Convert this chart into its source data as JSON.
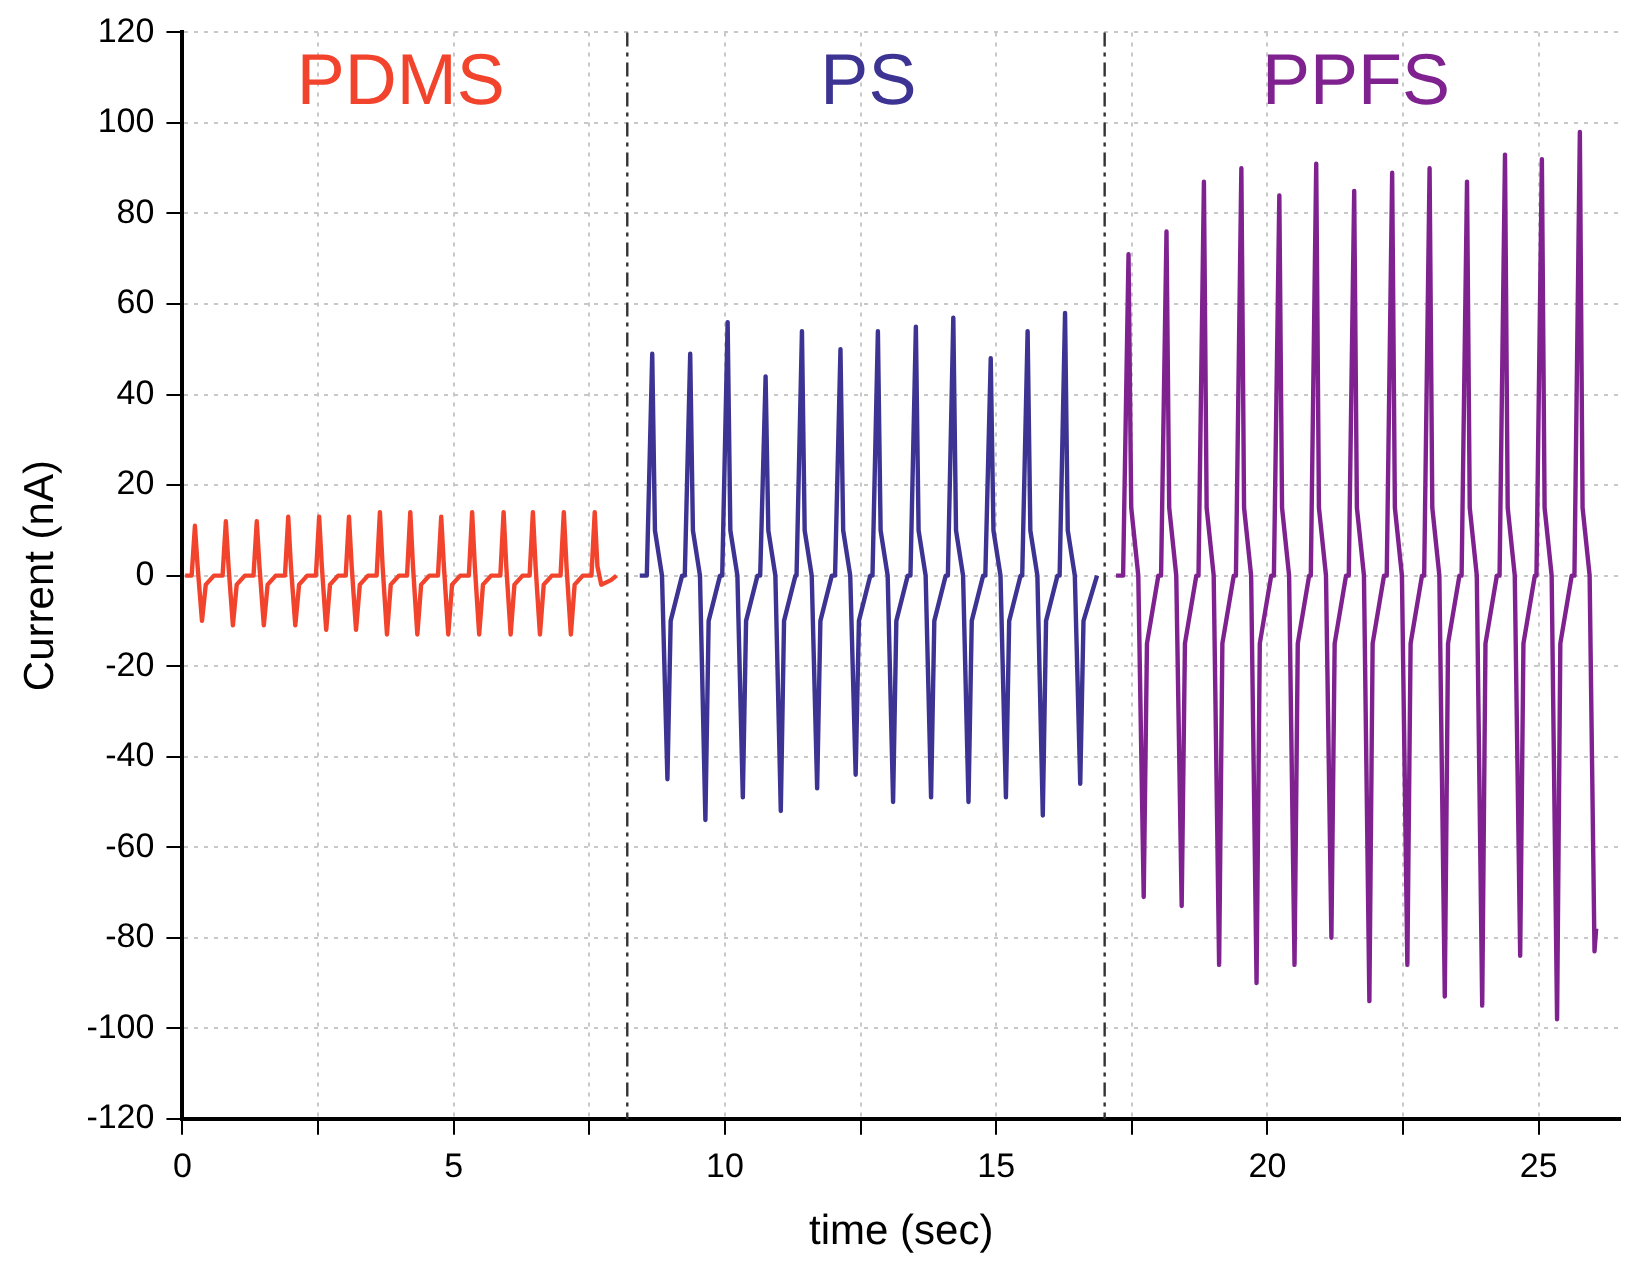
{
  "chart_data": {
    "type": "line",
    "xlabel": "time (sec)",
    "ylabel": "Current (nA)",
    "xlim": [
      0,
      26.5
    ],
    "ylim": [
      -120,
      120
    ],
    "xticks": [
      0,
      {
        "value": 2.5,
        "label": null
      },
      5,
      {
        "value": 7.5,
        "label": null
      },
      10,
      {
        "value": 12.5,
        "label": null
      },
      15,
      {
        "value": 17.5,
        "label": null
      },
      20,
      {
        "value": 22.5,
        "label": null
      },
      25
    ],
    "yticks": [
      -120,
      -100,
      -80,
      -60,
      -40,
      -20,
      0,
      20,
      40,
      60,
      80,
      100,
      120
    ],
    "grid": true,
    "legend": false,
    "ref_lines": [
      {
        "axis": "x",
        "value": 8.2,
        "color": "#333333",
        "line_style": "dashed"
      },
      {
        "axis": "x",
        "value": 17.0,
        "color": "#333333",
        "line_style": "dashed"
      }
    ],
    "series": [
      {
        "name": "PDMS",
        "color": "#f2442d",
        "x": [
          0.05,
          0.17,
          0.23,
          0.28,
          0.36,
          0.43,
          0.58,
          0.74,
          0.8,
          0.85,
          0.93,
          1.0,
          1.15,
          1.31,
          1.37,
          1.42,
          1.5,
          1.57,
          1.72,
          1.89,
          1.95,
          2.0,
          2.08,
          2.15,
          2.3,
          2.46,
          2.52,
          2.57,
          2.65,
          2.72,
          2.87,
          3.01,
          3.07,
          3.12,
          3.2,
          3.27,
          3.42,
          3.58,
          3.64,
          3.69,
          3.77,
          3.84,
          3.99,
          4.14,
          4.2,
          4.25,
          4.33,
          4.4,
          4.55,
          4.71,
          4.77,
          4.82,
          4.9,
          4.97,
          5.12,
          5.28,
          5.34,
          5.39,
          5.47,
          5.54,
          5.69,
          5.86,
          5.92,
          5.97,
          6.05,
          6.12,
          6.27,
          6.4,
          6.46,
          6.51,
          6.59,
          6.66,
          6.81,
          6.97,
          7.03,
          7.08,
          7.16,
          7.23,
          7.38,
          7.54,
          7.6,
          7.65,
          7.72,
          7.9,
          8.0
        ],
        "values": [
          0,
          0,
          11,
          2,
          -10,
          -2,
          0,
          0,
          12,
          2,
          -11,
          -2,
          0,
          0,
          12,
          2,
          -11,
          -2,
          0,
          0,
          13,
          2,
          -11,
          -2,
          0,
          0,
          13,
          2,
          -12,
          -2,
          0,
          0,
          13,
          2,
          -12,
          -2,
          0,
          0,
          14,
          2,
          -13,
          -2,
          0,
          0,
          14,
          2,
          -13,
          -2,
          0,
          0,
          13,
          2,
          -13,
          -2,
          0,
          0,
          14,
          2,
          -13,
          -2,
          0,
          0,
          14,
          2,
          -13,
          -2,
          0,
          0,
          14,
          2,
          -13,
          -2,
          0,
          0,
          14,
          2,
          -13,
          -2,
          0,
          0,
          14,
          2,
          -2,
          -1,
          0
        ]
      },
      {
        "name": "PS",
        "color": "#3c3393",
        "x": [
          8.43,
          8.56,
          8.66,
          8.71,
          8.84,
          8.94,
          9.0,
          9.21,
          9.26,
          9.36,
          9.41,
          9.54,
          9.64,
          9.7,
          9.91,
          9.95,
          10.05,
          10.1,
          10.23,
          10.33,
          10.39,
          10.6,
          10.65,
          10.75,
          10.8,
          10.93,
          11.03,
          11.09,
          11.3,
          11.32,
          11.42,
          11.47,
          11.6,
          11.7,
          11.76,
          11.97,
          12.03,
          12.13,
          12.18,
          12.31,
          12.41,
          12.47,
          12.68,
          12.72,
          12.82,
          12.87,
          13.0,
          13.1,
          13.16,
          13.37,
          13.42,
          13.52,
          13.57,
          13.7,
          13.8,
          13.86,
          14.07,
          14.11,
          14.21,
          14.26,
          14.39,
          14.49,
          14.55,
          14.76,
          14.8,
          14.9,
          14.95,
          15.08,
          15.18,
          15.24,
          15.45,
          15.48,
          15.58,
          15.63,
          15.76,
          15.86,
          15.92,
          16.13,
          16.17,
          16.27,
          16.32,
          16.45,
          16.55,
          16.61,
          16.86
        ],
        "values": [
          0,
          0,
          49,
          10,
          0,
          -45,
          -10,
          0,
          0,
          49,
          10,
          0,
          -54,
          -10,
          0,
          0,
          56,
          10,
          0,
          -49,
          -10,
          0,
          0,
          44,
          10,
          0,
          -52,
          -10,
          0,
          0,
          54,
          10,
          0,
          -47,
          -10,
          0,
          0,
          50,
          10,
          0,
          -44,
          -10,
          0,
          0,
          54,
          10,
          0,
          -50,
          -10,
          0,
          0,
          55,
          10,
          0,
          -49,
          -10,
          0,
          0,
          57,
          10,
          0,
          -50,
          -10,
          0,
          0,
          48,
          10,
          0,
          -49,
          -10,
          0,
          0,
          54,
          10,
          0,
          -53,
          -10,
          0,
          0,
          58,
          10,
          0,
          -46,
          -10,
          0
        ]
      },
      {
        "name": "PPFS",
        "color": "#7f2290",
        "x": [
          17.21,
          17.34,
          17.44,
          17.49,
          17.62,
          17.72,
          17.78,
          17.99,
          18.04,
          18.14,
          18.19,
          18.32,
          18.42,
          18.48,
          18.69,
          18.73,
          18.83,
          18.88,
          19.01,
          19.11,
          19.17,
          19.38,
          19.42,
          19.52,
          19.57,
          19.7,
          19.8,
          19.86,
          20.07,
          20.12,
          20.22,
          20.27,
          20.4,
          20.5,
          20.56,
          20.77,
          20.8,
          20.9,
          20.95,
          21.08,
          21.18,
          21.24,
          21.45,
          21.5,
          21.6,
          21.65,
          21.78,
          21.88,
          21.94,
          22.15,
          22.2,
          22.3,
          22.35,
          22.48,
          22.58,
          22.64,
          22.85,
          22.89,
          22.99,
          23.04,
          23.17,
          23.27,
          23.33,
          23.54,
          23.58,
          23.68,
          23.73,
          23.86,
          23.96,
          24.02,
          24.23,
          24.28,
          24.38,
          24.43,
          24.56,
          24.66,
          24.72,
          24.93,
          24.96,
          25.06,
          25.11,
          25.24,
          25.34,
          25.4,
          25.61,
          25.66,
          25.76,
          25.81,
          25.94,
          26.03,
          26.06
        ],
        "values": [
          0,
          0,
          71,
          15,
          0,
          -71,
          -15,
          0,
          0,
          76,
          15,
          0,
          -73,
          -15,
          0,
          0,
          87,
          15,
          0,
          -86,
          -15,
          0,
          0,
          90,
          15,
          0,
          -90,
          -15,
          0,
          0,
          84,
          15,
          0,
          -86,
          -15,
          0,
          0,
          91,
          15,
          0,
          -80,
          -15,
          0,
          0,
          85,
          15,
          0,
          -94,
          -15,
          0,
          0,
          89,
          15,
          0,
          -86,
          -15,
          0,
          0,
          90,
          15,
          0,
          -93,
          -15,
          0,
          0,
          87,
          15,
          0,
          -95,
          -15,
          0,
          0,
          93,
          15,
          0,
          -84,
          -15,
          0,
          0,
          92,
          15,
          0,
          -98,
          -15,
          0,
          0,
          98,
          15,
          0,
          -83,
          -78
        ]
      }
    ]
  }
}
